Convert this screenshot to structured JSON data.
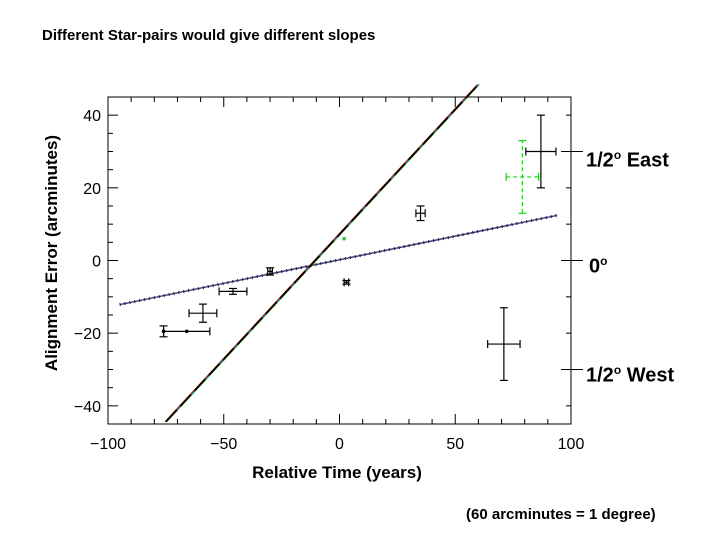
{
  "slide": {
    "title": "Different Star-pairs would give different slopes",
    "footnote": "(60 arcminutes = 1 degree)"
  },
  "side_labels": {
    "east": {
      "main": "1/2",
      "sup": "o",
      "rest": " East"
    },
    "zero": {
      "main": "0",
      "sup": "o",
      "rest": ""
    },
    "west": {
      "main": "1/2",
      "sup": "o",
      "rest": " West"
    }
  },
  "chart_data": {
    "type": "scatter",
    "title": "Different Star-pairs would give different slopes",
    "xlabel": "Relative Time (years)",
    "ylabel": "Alignment Error (arcminutes)",
    "xlim": [
      -100,
      100
    ],
    "ylim": [
      -45,
      45
    ],
    "xticks": [
      -100,
      -50,
      0,
      50,
      100
    ],
    "yticks": [
      -40,
      -20,
      0,
      20,
      40
    ],
    "xtick_labels": [
      "−100",
      "−50",
      "0",
      "50",
      "100"
    ],
    "ytick_labels": [
      "−40",
      "−20",
      "0",
      "20",
      "40"
    ],
    "right_axis_ticks": [
      30,
      0,
      -30
    ],
    "points": [
      {
        "x": -76,
        "y": -19.5,
        "xerr": 0,
        "yerr": 1.5
      },
      {
        "x": -66,
        "y": -19.5,
        "xerr": 10,
        "yerr": 0
      },
      {
        "x": -59,
        "y": -14.5,
        "xerr": 6,
        "yerr": 2.5
      },
      {
        "x": -46,
        "y": -8.5,
        "xerr": 6,
        "yerr": 0.8
      },
      {
        "x": -30,
        "y": -3,
        "xerr": 1,
        "yerr": 1
      },
      {
        "x": 3,
        "y": -6,
        "xerr": 1,
        "yerr": 0.5
      },
      {
        "x": 35,
        "y": 13,
        "xerr": 2,
        "yerr": 2
      },
      {
        "x": 87,
        "y": 30,
        "xerr": 6.5,
        "yerr": 10
      },
      {
        "x": 71,
        "y": -23,
        "xerr": 7,
        "yerr": 10
      }
    ],
    "highlight_points": [
      {
        "x": 79,
        "y": 23,
        "xerr": 7,
        "yerr": 10,
        "color": "#22cc22"
      },
      {
        "x": 2,
        "y": 6,
        "xerr": 0,
        "yerr": 0,
        "color": "#22cc22"
      }
    ],
    "lines": [
      {
        "name": "shallow",
        "x_range": [
          -95,
          94
        ],
        "slope": 0.13,
        "intercept": 0.2,
        "style": "dotted-dark",
        "color": "#2a2a60"
      },
      {
        "name": "steep",
        "x_range": [
          -75,
          60
        ],
        "slope": 0.6875,
        "intercept": 7.2,
        "style": "long-dash",
        "color": "#000000",
        "overlay_colors": [
          "#cc2222",
          "#2244cc",
          "#22aa22"
        ]
      }
    ],
    "colors": {
      "axis": "#000000",
      "highlight": "#22cc22"
    }
  }
}
